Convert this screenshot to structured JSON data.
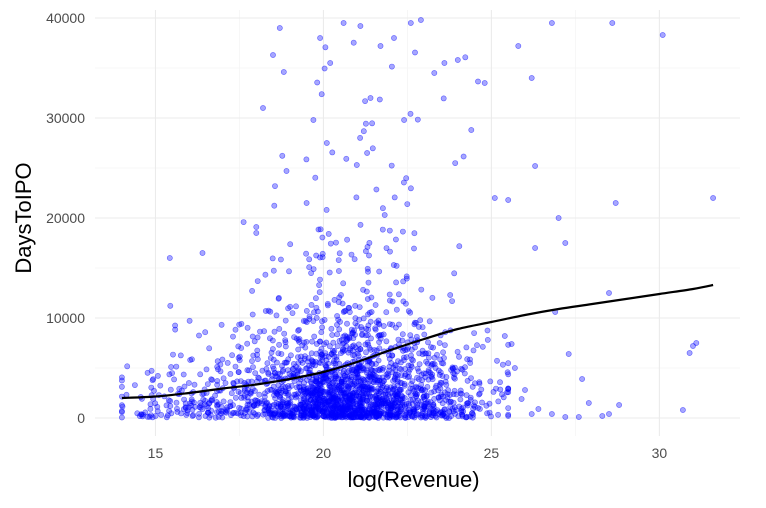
{
  "chart_data": {
    "type": "scatter",
    "title": "",
    "xlabel": "log(Revenue)",
    "ylabel": "DaysToIPO",
    "xlim": [
      13.2,
      32.4
    ],
    "ylim": [
      -1800,
      40800
    ],
    "x_ticks": [
      15,
      20,
      25,
      30
    ],
    "y_ticks": [
      0,
      10000,
      20000,
      30000,
      40000
    ],
    "x_tick_labels": [
      "15",
      "20",
      "25",
      "30"
    ],
    "y_tick_labels": [
      "0",
      "10000",
      "20000",
      "30000",
      "40000"
    ],
    "grid": true,
    "legend": "none",
    "colors": {
      "points": "#0000ff",
      "smooth_line": "#000000",
      "grid_major": "#ebebeb",
      "grid_minor": "#f5f5f5"
    },
    "point_opacity": 0.35,
    "outliers": [
      {
        "x": 18.2,
        "y": 31000
      },
      {
        "x": 18.5,
        "y": 36300
      },
      {
        "x": 18.7,
        "y": 39000
      },
      {
        "x": 18.9,
        "y": 24700
      },
      {
        "x": 19.5,
        "y": 21500
      },
      {
        "x": 19.9,
        "y": 38000
      },
      {
        "x": 20.2,
        "y": 35500
      },
      {
        "x": 20.6,
        "y": 39500
      },
      {
        "x": 21.1,
        "y": 39200
      },
      {
        "x": 21.4,
        "y": 32000
      },
      {
        "x": 21.7,
        "y": 37200
      },
      {
        "x": 22.1,
        "y": 38000
      },
      {
        "x": 22.6,
        "y": 39500
      },
      {
        "x": 22.9,
        "y": 39800
      },
      {
        "x": 22.4,
        "y": 29800
      },
      {
        "x": 23.6,
        "y": 35500
      },
      {
        "x": 24.0,
        "y": 35800
      },
      {
        "x": 23.3,
        "y": 34500
      },
      {
        "x": 24.4,
        "y": 28800
      },
      {
        "x": 24.8,
        "y": 33500
      },
      {
        "x": 25.8,
        "y": 37200
      },
      {
        "x": 26.2,
        "y": 34000
      },
      {
        "x": 26.8,
        "y": 39500
      },
      {
        "x": 28.6,
        "y": 39500
      },
      {
        "x": 30.1,
        "y": 38300
      },
      {
        "x": 20.1,
        "y": 27500
      },
      {
        "x": 21.3,
        "y": 26500
      },
      {
        "x": 19.7,
        "y": 29800
      },
      {
        "x": 18.0,
        "y": 18500
      },
      {
        "x": 16.4,
        "y": 16500
      },
      {
        "x": 25.1,
        "y": 22000
      },
      {
        "x": 25.5,
        "y": 21800
      },
      {
        "x": 26.3,
        "y": 25200
      },
      {
        "x": 27.0,
        "y": 20000
      },
      {
        "x": 26.3,
        "y": 17000
      },
      {
        "x": 27.2,
        "y": 17500
      },
      {
        "x": 28.5,
        "y": 12500
      },
      {
        "x": 28.7,
        "y": 21500
      },
      {
        "x": 31.6,
        "y": 22000
      },
      {
        "x": 31.0,
        "y": 7200
      },
      {
        "x": 30.9,
        "y": 6500
      },
      {
        "x": 31.1,
        "y": 7500
      },
      {
        "x": 30.7,
        "y": 800
      },
      {
        "x": 28.8,
        "y": 1300
      },
      {
        "x": 28.5,
        "y": 400
      },
      {
        "x": 28.3,
        "y": 200
      },
      {
        "x": 27.3,
        "y": 6400
      },
      {
        "x": 27.7,
        "y": 3900
      },
      {
        "x": 27.6,
        "y": 100
      },
      {
        "x": 27.2,
        "y": 100
      },
      {
        "x": 26.8,
        "y": 400
      },
      {
        "x": 26.4,
        "y": 900
      },
      {
        "x": 26.0,
        "y": 2800
      },
      {
        "x": 25.7,
        "y": 5000
      },
      {
        "x": 25.6,
        "y": 7400
      },
      {
        "x": 25.4,
        "y": 8200
      },
      {
        "x": 26.9,
        "y": 10600
      },
      {
        "x": 25.9,
        "y": 1900
      },
      {
        "x": 26.2,
        "y": 400
      },
      {
        "x": 27.9,
        "y": 1500
      }
    ],
    "dense_clusters": [
      {
        "x_mean": 20.5,
        "x_sd": 1.5,
        "y_scale": 3000,
        "count": 1450
      },
      {
        "x_mean": 21.2,
        "x_sd": 1.5,
        "y_scale": 8500,
        "count": 340
      },
      {
        "x_mean": 16.2,
        "x_sd": 1.2,
        "y_scale": 2200,
        "count": 200
      },
      {
        "x_mean": 23.8,
        "x_sd": 1.0,
        "y_scale": 3000,
        "count": 160
      }
    ],
    "smooth_line": {
      "x": [
        14,
        15,
        16,
        17,
        18,
        19,
        20,
        21,
        22,
        23,
        24,
        25,
        26,
        27,
        28,
        29,
        30,
        31,
        31.6
      ],
      "y": [
        2000,
        2150,
        2500,
        2950,
        3350,
        3900,
        4600,
        5600,
        6800,
        7900,
        8900,
        9600,
        10300,
        10900,
        11400,
        11900,
        12400,
        12900,
        13300
      ]
    }
  }
}
